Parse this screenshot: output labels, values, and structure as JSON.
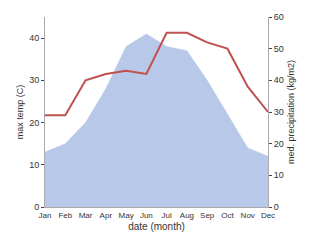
{
  "chart_data": {
    "type": "area",
    "xlabel": "date (month)",
    "ylabel": "max temp (C)",
    "y2label": "med. precipitation (kg/m2)",
    "categories": [
      "Jan",
      "Feb",
      "Mar",
      "Apr",
      "May",
      "Jun",
      "Jul",
      "Aug",
      "Sep",
      "Oct",
      "Nov",
      "Dec"
    ],
    "series": [
      {
        "type": "area",
        "color": "#b8c8e8",
        "values": [
          13,
          15,
          20,
          28,
          38,
          41,
          38,
          37,
          30,
          22,
          14,
          12
        ]
      },
      {
        "type": "line",
        "color": "#c05050",
        "axis": "y2",
        "values": [
          29,
          29,
          40,
          42,
          43,
          42,
          55,
          55,
          52,
          50,
          38,
          30
        ]
      }
    ],
    "ylim": [
      0,
      45
    ],
    "yticks": [
      0,
      10,
      20,
      30,
      40
    ],
    "y2lim": [
      0,
      60
    ],
    "y2ticks": [
      0,
      10,
      20,
      30,
      40,
      50,
      60
    ],
    "grid": false
  }
}
